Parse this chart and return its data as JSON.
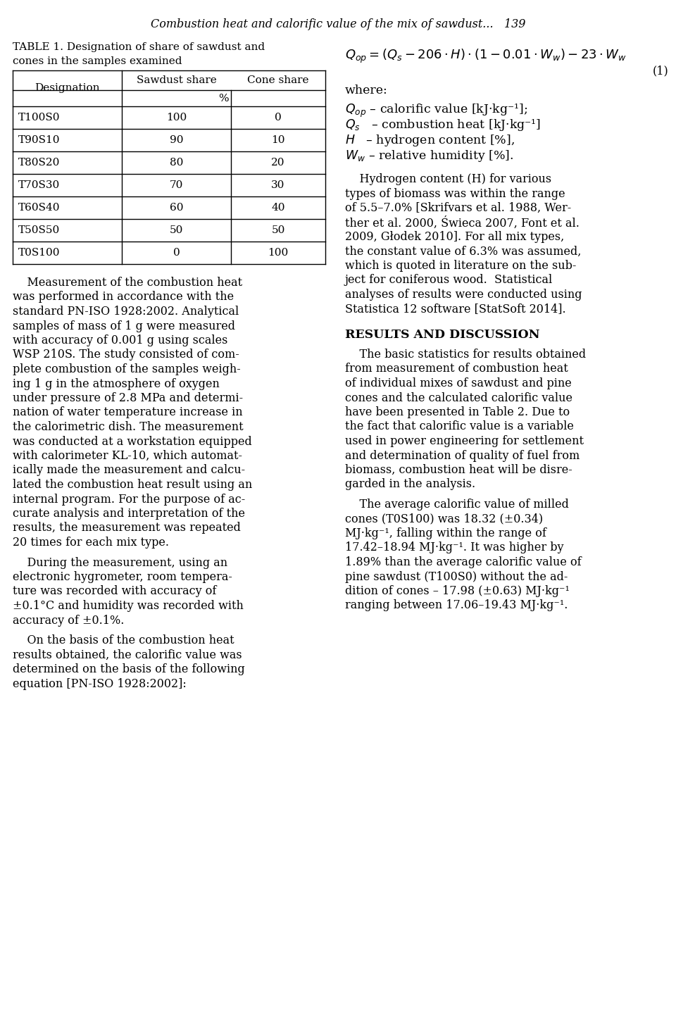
{
  "header": "Combustion heat and calorific value of the mix of sawdust...   139",
  "table_title_line1": "TABLE 1. Designation of share of sawdust and",
  "table_title_line2": "cones in the samples examined",
  "table_rows": [
    [
      "T100S0",
      "100",
      "0"
    ],
    [
      "T90S10",
      "90",
      "10"
    ],
    [
      "T80S20",
      "80",
      "20"
    ],
    [
      "T70S30",
      "70",
      "30"
    ],
    [
      "T60S40",
      "60",
      "40"
    ],
    [
      "T50S50",
      "50",
      "50"
    ],
    [
      "T0S100",
      "0",
      "100"
    ]
  ],
  "left_para1": [
    "    Measurement of the combustion heat",
    "was performed in accordance with the",
    "standard PN-ISO 1928:2002. Analytical",
    "samples of mass of 1 g were measured",
    "with accuracy of 0.001 g using scales",
    "WSP 210S. The study consisted of com-",
    "plete combustion of the samples weigh-",
    "ing 1 g in the atmosphere of oxygen",
    "under pressure of 2.8 MPa and determi-",
    "nation of water temperature increase in",
    "the calorimetric dish. The measurement",
    "was conducted at a workstation equipped",
    "with calorimeter KL-10, which automat-",
    "ically made the measurement and calcu-",
    "lated the combustion heat result using an",
    "internal program. For the purpose of ac-",
    "curate analysis and interpretation of the",
    "results, the measurement was repeated",
    "20 times for each mix type."
  ],
  "left_para2": [
    "    During the measurement, using an",
    "electronic hygrometer, room tempera-",
    "ture was recorded with accuracy of",
    "±0.1°C and humidity was recorded with",
    "accuracy of ±0.1%."
  ],
  "left_para3": [
    "    On the basis of the combustion heat",
    "results obtained, the calorific value was",
    "determined on the basis of the following",
    "equation [PN-ISO 1928:2002]:"
  ],
  "right_para1": [
    "    Hydrogen content (H) for various",
    "types of biomass was within the range",
    "of 5.5–7.0% [Skrifvars et al. 1988, Wer-",
    "ther et al. 2000, Świeca 2007, Font et al.",
    "2009, Głodek 2010]. For all mix types,",
    "the constant value of 6.3% was assumed,",
    "which is quoted in literature on the sub-",
    "ject for coniferous wood.  Statistical",
    "analyses of results were conducted using",
    "Statistica 12 software [StatSoft 2014]."
  ],
  "results_header": "RESULTS AND DISCUSSION",
  "right_para2": [
    "    The basic statistics for results obtained",
    "from measurement of combustion heat",
    "of individual mixes of sawdust and pine",
    "cones and the calculated calorific value",
    "have been presented in Table 2. Due to",
    "the fact that calorific value is a variable",
    "used in power engineering for settlement",
    "and determination of quality of fuel from",
    "biomass, combustion heat will be disre-",
    "garded in the analysis."
  ],
  "right_para3": [
    "    The average calorific value of milled",
    "cones (T0S100) was 18.32 (±0.34)",
    "MJ·kg⁻¹, falling within the range of",
    "17.42–18.94 MJ·kg⁻¹. It was higher by",
    "1.89% than the average calorific value of",
    "pine sawdust (T100S0) without the ad-",
    "dition of cones – 17.98 (±0.63) MJ·kg⁻¹",
    "ranging between 17.06–19.43 MJ·kg⁻¹."
  ],
  "bg_color": "#ffffff",
  "text_color": "#000000"
}
